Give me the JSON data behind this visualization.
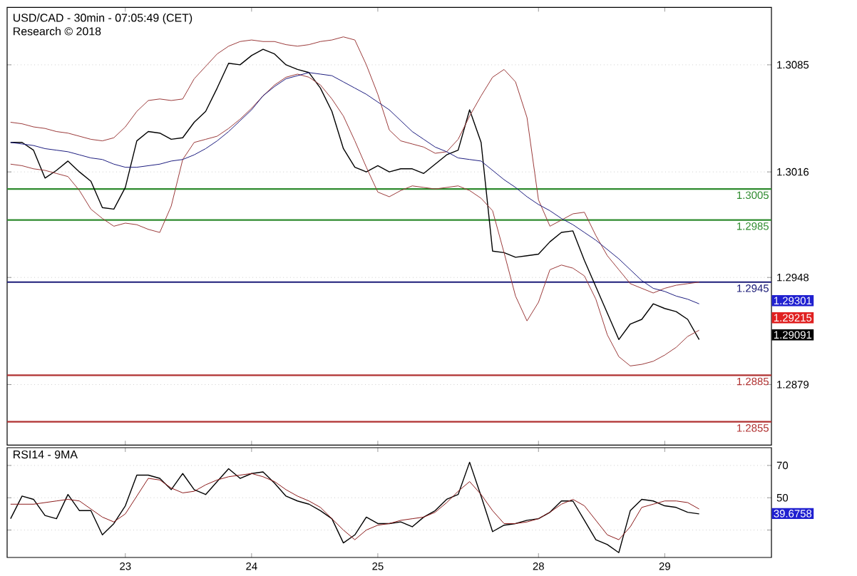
{
  "chart_data": [
    {
      "type": "line",
      "title": "USD/CAD - 30min - 07:05:49 (CET)",
      "subtitle": "Research © 2018",
      "ylim": [
        1.284,
        1.3122
      ],
      "grid": "y",
      "tick_labels": "y",
      "categories": [
        null,
        null,
        null,
        null,
        null,
        null,
        null,
        null,
        null,
        null,
        "23",
        null,
        null,
        null,
        null,
        null,
        null,
        null,
        null,
        null,
        null,
        "24",
        null,
        null,
        null,
        null,
        null,
        null,
        null,
        null,
        null,
        null,
        "25",
        null,
        null,
        null,
        null,
        null,
        null,
        null,
        null,
        null,
        null,
        null,
        null,
        null,
        "28",
        null,
        null,
        null,
        null,
        null,
        null,
        null,
        null,
        null,
        null,
        "29",
        null,
        null,
        null,
        null,
        null,
        null,
        null,
        null,
        null
      ],
      "yticks": [
        1.3085,
        1.3016,
        1.2948,
        1.2879
      ],
      "series": [
        {
          "color": "#000000",
          "values": [
            1.3035,
            1.3035,
            1.303,
            1.3012,
            1.3017,
            1.3023,
            1.3016,
            1.301,
            1.2993,
            1.2992,
            1.3006,
            1.3036,
            1.3042,
            1.3041,
            1.3037,
            1.3038,
            1.3048,
            1.3055,
            1.307,
            1.3086,
            1.3085,
            1.3091,
            1.3095,
            1.3092,
            1.3085,
            1.3082,
            1.308,
            1.307,
            1.3055,
            1.3031,
            1.3019,
            1.3016,
            1.302,
            1.3016,
            1.3018,
            1.3018,
            1.3015,
            1.3021,
            1.3027,
            1.303,
            1.3056,
            1.3035,
            1.2965,
            1.2964,
            1.2961,
            1.2962,
            1.2963,
            1.2971,
            1.2977,
            1.2978,
            1.2959,
            1.2942,
            1.2925,
            1.2908,
            1.2918,
            1.2921,
            1.2931,
            1.2928,
            1.2926,
            1.2921,
            1.2908,
            null,
            null,
            null,
            null,
            null,
            null
          ]
        },
        {
          "color": "#9b3a3a",
          "values": [
            1.3048,
            1.3047,
            1.3045,
            1.3044,
            1.3042,
            1.3041,
            1.3039,
            1.3037,
            1.3036,
            1.3038,
            1.3045,
            1.3055,
            1.3062,
            1.3063,
            1.3062,
            1.3063,
            1.3076,
            1.3084,
            1.3092,
            1.3097,
            1.31,
            1.3101,
            1.31,
            1.31,
            1.3098,
            1.3097,
            1.3098,
            1.31,
            1.3101,
            1.3103,
            1.3101,
            1.3085,
            1.3066,
            1.3043,
            1.3036,
            1.3034,
            1.3032,
            1.3028,
            1.3029,
            1.3037,
            1.3052,
            1.3065,
            1.3077,
            1.3082,
            1.3074,
            1.3051,
            1.2998,
            1.2981,
            1.2985,
            1.2989,
            1.299,
            1.2975,
            1.2962,
            1.2953,
            1.2944,
            1.2941,
            1.2938,
            1.2941,
            1.2943,
            1.2944,
            1.2945,
            null,
            null,
            null,
            null,
            null,
            null
          ]
        },
        {
          "color": "#9b3a3a",
          "values": [
            1.3021,
            1.302,
            1.3018,
            1.3017,
            1.3015,
            1.3013,
            1.3004,
            1.2992,
            1.2986,
            1.2981,
            1.2983,
            1.2982,
            1.2979,
            1.2977,
            1.2994,
            1.3024,
            1.3035,
            1.3037,
            1.3039,
            1.3044,
            1.305,
            1.3057,
            1.3065,
            1.3072,
            1.3077,
            1.3079,
            1.3077,
            1.3072,
            1.3063,
            1.3052,
            1.3036,
            1.3019,
            1.3003,
            1.3,
            1.3004,
            1.3007,
            1.3006,
            1.3005,
            1.3006,
            1.3007,
            1.3004,
            1.2999,
            1.2991,
            1.2964,
            1.2936,
            1.292,
            1.2932,
            1.2953,
            1.2956,
            1.2954,
            1.2949,
            1.2934,
            1.2911,
            1.2897,
            1.2891,
            1.2892,
            1.2894,
            1.2898,
            1.2903,
            1.291,
            1.2914,
            null,
            null,
            null,
            null,
            null,
            null
          ]
        },
        {
          "color": "#1c1c80",
          "values": [
            1.3035,
            1.3034,
            1.3033,
            1.3031,
            1.303,
            1.3029,
            1.3027,
            1.3025,
            1.3024,
            1.3021,
            1.3019,
            1.3019,
            1.302,
            1.3021,
            1.3023,
            1.3024,
            1.3027,
            1.3031,
            1.3036,
            1.3042,
            1.3049,
            1.3056,
            1.3065,
            1.3071,
            1.3076,
            1.3078,
            1.308,
            1.3079,
            1.3078,
            1.3074,
            1.307,
            1.3066,
            1.3061,
            1.3056,
            1.3049,
            1.3042,
            1.3037,
            1.3032,
            1.3029,
            1.3025,
            1.3024,
            1.3023,
            1.3017,
            1.3011,
            1.3006,
            1.3,
            1.2995,
            1.2991,
            1.2986,
            1.2982,
            1.2977,
            1.2972,
            1.2966,
            1.296,
            1.2953,
            1.2946,
            1.2941,
            1.2939,
            1.2936,
            1.2934,
            1.2931,
            null,
            null,
            null,
            null,
            null,
            null
          ]
        }
      ],
      "ref_lines": [
        {
          "axis": "y",
          "value": 1.3005,
          "label": "1.3005",
          "color": "#2e8b2e"
        },
        {
          "axis": "y",
          "value": 1.2985,
          "label": "1.2985",
          "color": "#2e8b2e"
        },
        {
          "axis": "y",
          "value": 1.2945,
          "label": "1.2945",
          "color": "#1c1c78"
        },
        {
          "axis": "y",
          "value": 1.2885,
          "label": "1.2885",
          "color": "#b03030"
        },
        {
          "axis": "y",
          "value": 1.2855,
          "label": "1.2855",
          "color": "#b03030"
        }
      ],
      "annotations": [
        "1.29301",
        "1.29215",
        "1.29091"
      ]
    },
    {
      "type": "line",
      "title": "RSI14 - 9MA",
      "ylim": [
        13,
        81
      ],
      "grid": "y",
      "categories": [
        null,
        null,
        null,
        null,
        null,
        null,
        null,
        null,
        null,
        null,
        "23",
        null,
        null,
        null,
        null,
        null,
        null,
        null,
        null,
        null,
        null,
        "24",
        null,
        null,
        null,
        null,
        null,
        null,
        null,
        null,
        null,
        null,
        "25",
        null,
        null,
        null,
        null,
        null,
        null,
        null,
        null,
        null,
        null,
        null,
        null,
        null,
        "28",
        null,
        null,
        null,
        null,
        null,
        null,
        null,
        null,
        null,
        null,
        "29",
        null,
        null,
        null,
        null,
        null,
        null,
        null,
        null,
        null
      ],
      "yticks": [
        70,
        50,
        {
          "value": 30,
          "label": null
        }
      ],
      "series": [
        {
          "color": "#000000",
          "values": [
            37,
            51,
            49,
            39,
            37,
            52,
            42,
            42,
            27,
            34,
            45,
            64,
            64,
            62,
            55,
            65,
            55,
            52,
            60,
            68,
            62,
            65,
            66,
            59,
            51,
            48,
            46,
            42,
            37,
            22,
            27,
            38,
            34,
            34,
            35,
            32,
            38,
            42,
            49,
            52,
            72,
            51,
            29,
            33,
            34,
            36,
            37,
            41,
            48,
            48,
            36,
            24,
            21,
            16,
            42,
            49,
            48,
            45,
            44,
            41,
            40,
            null,
            null,
            null,
            null,
            null,
            null
          ]
        },
        {
          "color": "#8b1a1a",
          "values": [
            46,
            46,
            46,
            47,
            48,
            49,
            48,
            43,
            38,
            35,
            40,
            51,
            62,
            61,
            56,
            53,
            54,
            58,
            61,
            63,
            64,
            65,
            63,
            60,
            55,
            51,
            48,
            44,
            37,
            30,
            24,
            30,
            33,
            34,
            36,
            37,
            38,
            41,
            47,
            54,
            60,
            52,
            42,
            34,
            34,
            35,
            37,
            41,
            46,
            49,
            45,
            36,
            27,
            24,
            32,
            44,
            46,
            48,
            48,
            47,
            43,
            null,
            null,
            null,
            null,
            null,
            null
          ]
        }
      ],
      "annotations": [
        "39.6758"
      ]
    }
  ]
}
